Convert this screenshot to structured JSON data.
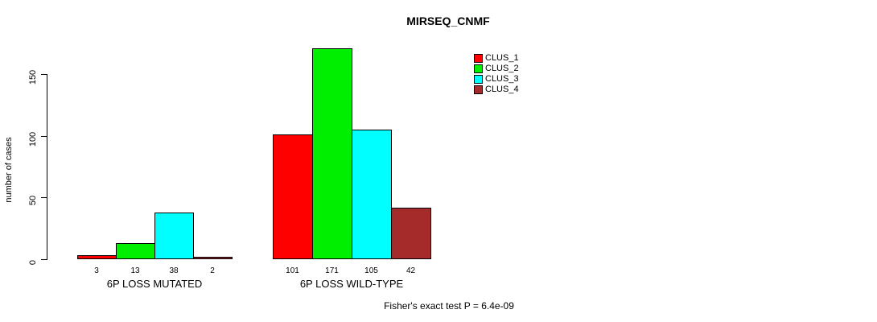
{
  "chart_data": {
    "type": "bar",
    "title": "MIRSEQ_CNMF",
    "ylabel": "number of cases",
    "xlabel": "",
    "categories": [
      "6P LOSS MUTATED",
      "6P LOSS WILD-TYPE"
    ],
    "series": [
      {
        "name": "CLUS_1",
        "color": "#FF0000",
        "values": [
          3,
          101
        ]
      },
      {
        "name": "CLUS_2",
        "color": "#00EE00",
        "values": [
          13,
          171
        ]
      },
      {
        "name": "CLUS_3",
        "color": "#00FFFF",
        "values": [
          38,
          105
        ]
      },
      {
        "name": "CLUS_4",
        "color": "#A52A2A",
        "values": [
          2,
          42
        ]
      }
    ],
    "value_labels": [
      [
        3,
        13,
        38,
        2
      ],
      [
        101,
        171,
        105,
        42
      ]
    ],
    "yticks": [
      0,
      50,
      100,
      150
    ],
    "ylim": [
      0,
      178
    ],
    "grid": false,
    "legend_position": "top-right",
    "legend_entries": [
      "CLUS_1",
      "CLUS_2",
      "CLUS_3",
      "CLUS_4"
    ],
    "annotation": "Fisher's exact test P = 6.4e-09"
  }
}
